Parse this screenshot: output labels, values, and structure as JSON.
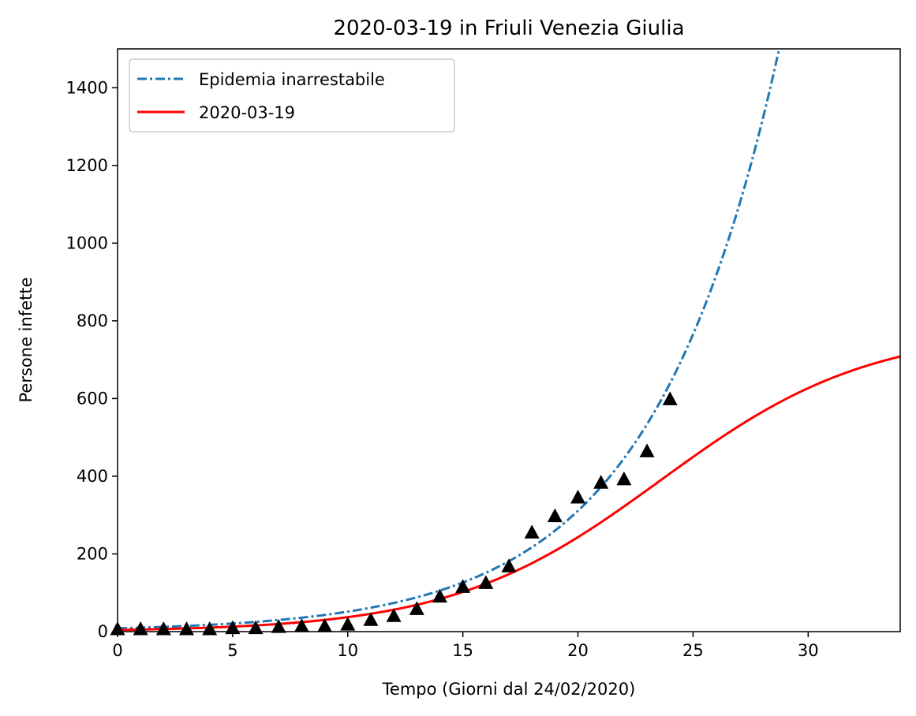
{
  "chart_data": {
    "type": "line",
    "title": "2020-03-19 in Friuli Venezia Giulia",
    "xlabel": "Tempo (Giorni dal 24/02/2020)",
    "ylabel": "Persone infette",
    "xlim": [
      0,
      34
    ],
    "ylim": [
      0,
      1500
    ],
    "xticks": [
      0,
      5,
      10,
      15,
      20,
      25,
      30
    ],
    "yticks": [
      0,
      200,
      400,
      600,
      800,
      1000,
      1200,
      1400
    ],
    "legend_position": "top-left",
    "grid": false,
    "series": [
      {
        "name": "Epidemia inarrestabile",
        "style": "dash-dot",
        "color": "#1f77b4",
        "model": "exponential",
        "a": 8.5,
        "b": 0.18
      },
      {
        "name": "2020-03-19",
        "style": "solid",
        "color": "#ff0000",
        "model": "logistic",
        "K": 780,
        "r": 0.22,
        "x0": 23.6
      }
    ],
    "observations": {
      "marker": "triangle",
      "color": "#000000",
      "x": [
        0,
        1,
        2,
        3,
        4,
        5,
        6,
        7,
        8,
        9,
        10,
        11,
        12,
        13,
        14,
        15,
        16,
        17,
        18,
        19,
        20,
        21,
        22,
        23,
        24
      ],
      "y": [
        6,
        6,
        6,
        6,
        6,
        9,
        9,
        12,
        14,
        14,
        18,
        30,
        40,
        58,
        90,
        115,
        125,
        168,
        255,
        297,
        345,
        383,
        392,
        464,
        598
      ]
    }
  }
}
